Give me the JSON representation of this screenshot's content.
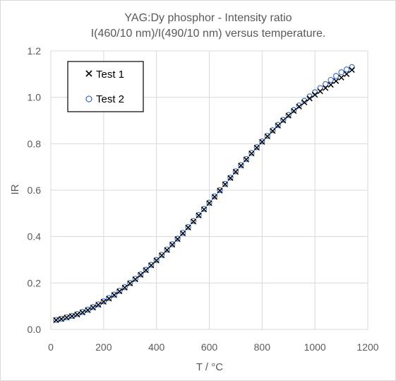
{
  "chart_data": {
    "type": "scatter",
    "title": [
      "YAG:Dy phosphor - Intensity ratio",
      "I(460/10 nm)/I(490/10 nm) versus temperature."
    ],
    "xlabel": "T / °C",
    "ylabel": "IR",
    "xlim": [
      0,
      1200
    ],
    "ylim": [
      0,
      1.2
    ],
    "x_ticks": [
      "0",
      "200",
      "400",
      "600",
      "800",
      "1000",
      "1200"
    ],
    "y_ticks": [
      "0.0",
      "0.2",
      "0.4",
      "0.6",
      "0.8",
      "1.0",
      "1.2"
    ],
    "grid": true,
    "legend_position": "top-left",
    "series": [
      {
        "name": "Test 1",
        "marker": "x",
        "color": "#000000",
        "x": [
          20,
          40,
          60,
          80,
          100,
          120,
          140,
          160,
          180,
          200,
          220,
          240,
          260,
          280,
          300,
          320,
          340,
          360,
          380,
          400,
          420,
          440,
          460,
          480,
          500,
          520,
          540,
          560,
          580,
          600,
          620,
          640,
          660,
          680,
          700,
          720,
          740,
          760,
          780,
          800,
          820,
          840,
          860,
          880,
          900,
          920,
          940,
          960,
          980,
          1000,
          1020,
          1040,
          1060,
          1080,
          1100,
          1120,
          1140
        ],
        "y": [
          0.04,
          0.045,
          0.051,
          0.057,
          0.064,
          0.073,
          0.083,
          0.094,
          0.106,
          0.119,
          0.133,
          0.148,
          0.164,
          0.18,
          0.198,
          0.216,
          0.235,
          0.255,
          0.276,
          0.297,
          0.319,
          0.342,
          0.365,
          0.389,
          0.414,
          0.439,
          0.465,
          0.491,
          0.517,
          0.544,
          0.571,
          0.598,
          0.625,
          0.652,
          0.679,
          0.706,
          0.732,
          0.758,
          0.783,
          0.808,
          0.832,
          0.855,
          0.878,
          0.9,
          0.921,
          0.941,
          0.96,
          0.978,
          0.995,
          1.011,
          1.026,
          1.04,
          1.054,
          1.07,
          1.085,
          1.1,
          1.118
        ]
      },
      {
        "name": "Test 2",
        "marker": "circle",
        "color": "#4472c4",
        "x": [
          20,
          40,
          60,
          80,
          100,
          120,
          140,
          160,
          180,
          200,
          220,
          240,
          260,
          280,
          300,
          320,
          340,
          360,
          380,
          400,
          420,
          440,
          460,
          480,
          500,
          520,
          540,
          560,
          580,
          600,
          620,
          640,
          660,
          680,
          700,
          720,
          740,
          760,
          780,
          800,
          820,
          840,
          860,
          880,
          900,
          920,
          940,
          960,
          980,
          1000,
          1020,
          1040,
          1060,
          1080,
          1100,
          1120,
          1140
        ],
        "y": [
          0.041,
          0.046,
          0.052,
          0.058,
          0.066,
          0.075,
          0.085,
          0.096,
          0.108,
          0.121,
          0.135,
          0.15,
          0.166,
          0.182,
          0.2,
          0.218,
          0.237,
          0.257,
          0.278,
          0.299,
          0.321,
          0.344,
          0.367,
          0.391,
          0.416,
          0.441,
          0.467,
          0.493,
          0.519,
          0.546,
          0.573,
          0.6,
          0.627,
          0.654,
          0.681,
          0.708,
          0.734,
          0.76,
          0.785,
          0.81,
          0.834,
          0.858,
          0.881,
          0.903,
          0.924,
          0.945,
          0.965,
          0.985,
          1.004,
          1.022,
          1.04,
          1.057,
          1.075,
          1.092,
          1.108,
          1.12,
          1.13
        ]
      }
    ]
  }
}
